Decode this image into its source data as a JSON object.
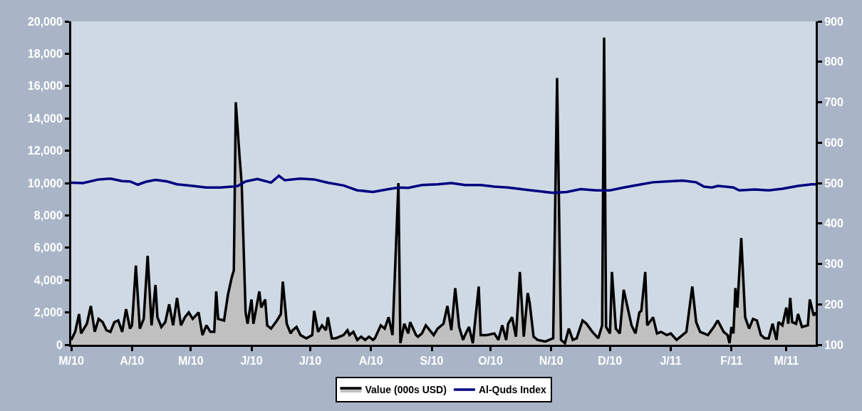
{
  "chart_data": {
    "type": "area",
    "legend": "bottom",
    "grid": false,
    "xlim": [
      "2010-03-01",
      "2011-03-16"
    ],
    "xticks": [
      {
        "value": "2010-03-01",
        "label": "M/10"
      },
      {
        "value": "2010-04-01",
        "label": "A/10"
      },
      {
        "value": "2010-05-01",
        "label": "M/10"
      },
      {
        "value": "2010-06-01",
        "label": "J/10"
      },
      {
        "value": "2010-07-01",
        "label": "J/10"
      },
      {
        "value": "2010-08-01",
        "label": "A/10"
      },
      {
        "value": "2010-09-01",
        "label": "S/10"
      },
      {
        "value": "2010-10-01",
        "label": "O/10"
      },
      {
        "value": "2010-11-01",
        "label": "N/10"
      },
      {
        "value": "2010-12-01",
        "label": "D/10"
      },
      {
        "value": "2011-01-01",
        "label": "J/11"
      },
      {
        "value": "2011-02-01",
        "label": "F/11"
      },
      {
        "value": "2011-03-01",
        "label": "M/11"
      }
    ],
    "ylim": [
      0,
      20000
    ],
    "yticks": [
      {
        "value": 0,
        "label": "0"
      },
      {
        "value": 2000,
        "label": "2,000"
      },
      {
        "value": 4000,
        "label": "4,000"
      },
      {
        "value": 6000,
        "label": "6,000"
      },
      {
        "value": 8000,
        "label": "8,000"
      },
      {
        "value": 10000,
        "label": "10,000"
      },
      {
        "value": 12000,
        "label": "12,000"
      },
      {
        "value": 14000,
        "label": "14,000"
      },
      {
        "value": 16000,
        "label": "16,000"
      },
      {
        "value": 18000,
        "label": "18,000"
      },
      {
        "value": 20000,
        "label": "20,000"
      }
    ],
    "y2lim": [
      100,
      900
    ],
    "y2ticks": [
      100,
      200,
      300,
      400,
      500,
      600,
      700,
      800,
      900
    ],
    "series": [
      {
        "name": "Value (000s USD)",
        "color": "#000000",
        "x": [
          "2010-03-01",
          "2010-03-03",
          "2010-03-05",
          "2010-03-06",
          "2010-03-09",
          "2010-03-11",
          "2010-03-13",
          "2010-03-15",
          "2010-03-17",
          "2010-03-19",
          "2010-03-21",
          "2010-03-23",
          "2010-03-25",
          "2010-03-27",
          "2010-03-29",
          "2010-03-31",
          "2010-04-01",
          "2010-04-03",
          "2010-04-05",
          "2010-04-07",
          "2010-04-09",
          "2010-04-11",
          "2010-04-13",
          "2010-04-14",
          "2010-04-16",
          "2010-04-18",
          "2010-04-20",
          "2010-04-22",
          "2010-04-24",
          "2010-04-26",
          "2010-04-28",
          "2010-04-30",
          "2010-05-02",
          "2010-05-05",
          "2010-05-07",
          "2010-05-09",
          "2010-05-11",
          "2010-05-13",
          "2010-05-14",
          "2010-05-15",
          "2010-05-18",
          "2010-05-20",
          "2010-05-22",
          "2010-05-23",
          "2010-05-24",
          "2010-05-26",
          "2010-05-27",
          "2010-05-29",
          "2010-05-30",
          "2010-06-01",
          "2010-06-02",
          "2010-06-05",
          "2010-06-06",
          "2010-06-08",
          "2010-06-09",
          "2010-06-11",
          "2010-06-14",
          "2010-06-16",
          "2010-06-17",
          "2010-06-19",
          "2010-06-21",
          "2010-06-22",
          "2010-06-24",
          "2010-06-26",
          "2010-06-29",
          "2010-07-02",
          "2010-07-03",
          "2010-07-05",
          "2010-07-07",
          "2010-07-09",
          "2010-07-10",
          "2010-07-12",
          "2010-07-14",
          "2010-07-18",
          "2010-07-20",
          "2010-07-21",
          "2010-07-23",
          "2010-07-25",
          "2010-07-27",
          "2010-07-29",
          "2010-07-31",
          "2010-08-02",
          "2010-08-03",
          "2010-08-06",
          "2010-08-08",
          "2010-08-10",
          "2010-08-12",
          "2010-08-15",
          "2010-08-16",
          "2010-08-18",
          "2010-08-20",
          "2010-08-21",
          "2010-08-24",
          "2010-08-25",
          "2010-08-27",
          "2010-08-29",
          "2010-08-31",
          "2010-09-02",
          "2010-09-04",
          "2010-09-07",
          "2010-09-09",
          "2010-09-11",
          "2010-09-13",
          "2010-09-15",
          "2010-09-17",
          "2010-09-18",
          "2010-09-20",
          "2010-09-22",
          "2010-09-25",
          "2010-09-26",
          "2010-09-29",
          "2010-10-03",
          "2010-10-05",
          "2010-10-07",
          "2010-10-09",
          "2010-10-10",
          "2010-10-12",
          "2010-10-14",
          "2010-10-16",
          "2010-10-18",
          "2010-10-20",
          "2010-10-21",
          "2010-10-23",
          "2010-10-25",
          "2010-10-29",
          "2010-11-02",
          "2010-11-04",
          "2010-11-06",
          "2010-11-08",
          "2010-11-10",
          "2010-11-12",
          "2010-11-14",
          "2010-11-17",
          "2010-11-19",
          "2010-11-22",
          "2010-11-25",
          "2010-11-27",
          "2010-11-28",
          "2010-11-29",
          "2010-12-01",
          "2010-12-02",
          "2010-12-04",
          "2010-12-06",
          "2010-12-08",
          "2010-12-10",
          "2010-12-12",
          "2010-12-14",
          "2010-12-16",
          "2010-12-17",
          "2010-12-19",
          "2010-12-20",
          "2010-12-23",
          "2010-12-25",
          "2010-12-27",
          "2010-12-30",
          "2011-01-01",
          "2011-01-04",
          "2011-01-07",
          "2011-01-09",
          "2011-01-12",
          "2011-01-14",
          "2011-01-16",
          "2011-01-20",
          "2011-01-23",
          "2011-01-25",
          "2011-01-28",
          "2011-01-30",
          "2011-01-31",
          "2011-02-01",
          "2011-02-02",
          "2011-02-03",
          "2011-02-04",
          "2011-02-06",
          "2011-02-08",
          "2011-02-10",
          "2011-02-12",
          "2011-02-14",
          "2011-02-16",
          "2011-02-18",
          "2011-02-20",
          "2011-02-22",
          "2011-02-24",
          "2011-02-25",
          "2011-02-27",
          "2011-03-01",
          "2011-03-02",
          "2011-03-03",
          "2011-03-04",
          "2011-03-06",
          "2011-03-07",
          "2011-03-09",
          "2011-03-12",
          "2011-03-13",
          "2011-03-15",
          "2011-03-16"
        ],
        "values": [
          300,
          800,
          1900,
          700,
          1300,
          2400,
          800,
          1600,
          1400,
          900,
          800,
          1400,
          1500,
          800,
          2200,
          1000,
          1200,
          4900,
          1000,
          1600,
          5500,
          1200,
          3700,
          1700,
          1100,
          1400,
          2500,
          1200,
          2900,
          1200,
          1700,
          2000,
          1600,
          2000,
          600,
          1200,
          800,
          800,
          3300,
          1600,
          1500,
          3100,
          4200,
          4600,
          15000,
          11500,
          10000,
          2000,
          1300,
          2800,
          1300,
          3300,
          2300,
          2800,
          1200,
          1000,
          1500,
          1900,
          3900,
          1300,
          700,
          900,
          1100,
          600,
          400,
          600,
          2100,
          800,
          1200,
          900,
          1700,
          400,
          400,
          600,
          900,
          600,
          800,
          300,
          500,
          300,
          500,
          300,
          400,
          1200,
          1000,
          1700,
          600,
          10000,
          100,
          1300,
          700,
          1400,
          600,
          500,
          700,
          1200,
          900,
          600,
          1000,
          1300,
          2400,
          900,
          3500,
          1100,
          300,
          600,
          1100,
          100,
          3600,
          600,
          600,
          700,
          300,
          1200,
          300,
          1300,
          1700,
          500,
          4500,
          500,
          3200,
          2600,
          500,
          300,
          200,
          400,
          16500,
          300,
          100,
          1000,
          300,
          400,
          1500,
          1300,
          800,
          400,
          1200,
          19000,
          1100,
          700,
          4500,
          1000,
          700,
          3400,
          2300,
          1200,
          700,
          2000,
          2100,
          4500,
          1200,
          1700,
          700,
          800,
          600,
          700,
          300,
          600,
          800,
          3600,
          1400,
          800,
          600,
          1100,
          1500,
          800,
          600,
          100,
          1100,
          700,
          3500,
          2300,
          6600,
          1700,
          1000,
          1600,
          1500,
          600,
          400,
          400,
          1300,
          300,
          1400,
          1200,
          2300,
          1300,
          2900,
          1400,
          1300,
          1900,
          1100,
          1200,
          2800,
          1800,
          2000
        ]
      },
      {
        "name": "Al-Quds Index",
        "type": "line",
        "axis": "y2",
        "color": "#000080",
        "x": [
          "2010-03-01",
          "2010-03-07",
          "2010-03-15",
          "2010-03-21",
          "2010-03-27",
          "2010-03-31",
          "2010-04-04",
          "2010-04-08",
          "2010-04-13",
          "2010-04-19",
          "2010-04-24",
          "2010-05-02",
          "2010-05-09",
          "2010-05-16",
          "2010-05-22",
          "2010-05-25",
          "2010-05-29",
          "2010-06-04",
          "2010-06-11",
          "2010-06-15",
          "2010-06-18",
          "2010-06-26",
          "2010-07-03",
          "2010-07-10",
          "2010-07-18",
          "2010-07-25",
          "2010-08-02",
          "2010-08-09",
          "2010-08-15",
          "2010-08-20",
          "2010-08-27",
          "2010-09-04",
          "2010-09-11",
          "2010-09-18",
          "2010-09-26",
          "2010-10-03",
          "2010-10-10",
          "2010-10-18",
          "2010-10-25",
          "2010-11-02",
          "2010-11-09",
          "2010-11-16",
          "2010-11-24",
          "2010-12-01",
          "2010-12-08",
          "2010-12-16",
          "2010-12-23",
          "2010-12-30",
          "2011-01-07",
          "2011-01-14",
          "2011-01-18",
          "2011-01-22",
          "2011-01-25",
          "2011-02-02",
          "2011-02-05",
          "2011-02-13",
          "2011-02-20",
          "2011-02-27",
          "2011-03-07",
          "2011-03-14",
          "2011-03-16"
        ],
        "values": [
          501,
          500,
          509,
          511,
          505,
          504,
          496,
          503,
          508,
          504,
          497,
          493,
          489,
          489,
          491,
          493,
          504,
          510,
          501,
          518,
          507,
          511,
          509,
          501,
          494,
          482,
          478,
          484,
          489,
          488,
          495,
          497,
          500,
          495,
          495,
          491,
          489,
          484,
          480,
          476,
          478,
          485,
          482,
          482,
          489,
          496,
          502,
          504,
          506,
          502,
          491,
          489,
          493,
          489,
          482,
          484,
          482,
          486,
          493,
          497,
          497
        ]
      }
    ]
  }
}
